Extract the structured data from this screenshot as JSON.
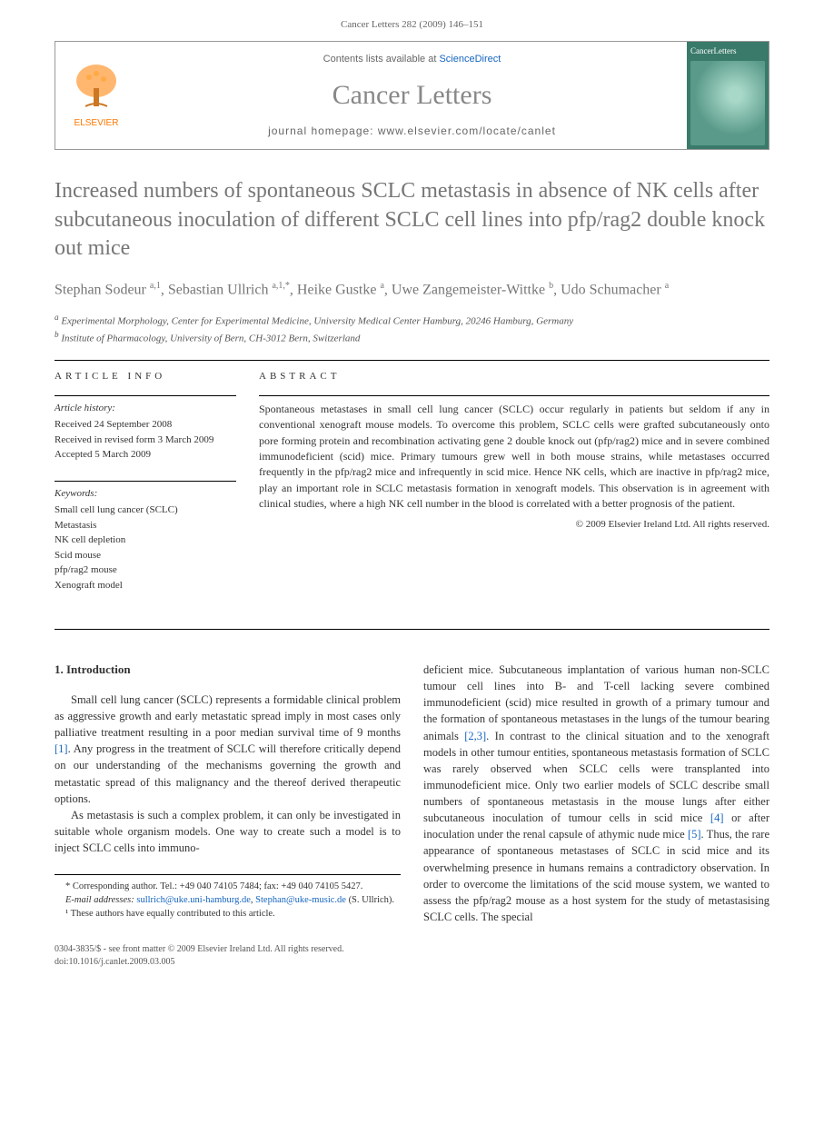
{
  "header": {
    "citation": "Cancer Letters 282 (2009) 146–151"
  },
  "journalBox": {
    "contents_prefix": "Contents lists available at ",
    "contents_link": "ScienceDirect",
    "journal_name": "Cancer Letters",
    "homepage_label": "journal homepage: www.elsevier.com/locate/canlet",
    "elsevier_label": "ELSEVIER",
    "cover_title": "CancerLetters"
  },
  "title": "Increased numbers of spontaneous SCLC metastasis in absence of NK cells after subcutaneous inoculation of different SCLC cell lines into pfp/rag2 double knock out mice",
  "authors_html": "Stephan Sodeur <sup>a,1</sup>, Sebastian Ullrich <sup>a,1,*</sup>, Heike Gustke <sup>a</sup>, Uwe Zangemeister-Wittke <sup>b</sup>, Udo Schumacher <sup>a</sup>",
  "affiliations": {
    "a": "Experimental Morphology, Center for Experimental Medicine, University Medical Center Hamburg, 20246 Hamburg, Germany",
    "b": "Institute of Pharmacology, University of Bern, CH-3012 Bern, Switzerland"
  },
  "articleInfo": {
    "section_label": "ARTICLE INFO",
    "history_heading": "Article history:",
    "received": "Received 24 September 2008",
    "revised": "Received in revised form 3 March 2009",
    "accepted": "Accepted 5 March 2009",
    "keywords_heading": "Keywords:",
    "keywords": [
      "Small cell lung cancer (SCLC)",
      "Metastasis",
      "NK cell depletion",
      "Scid mouse",
      "pfp/rag2 mouse",
      "Xenograft model"
    ]
  },
  "abstract": {
    "section_label": "ABSTRACT",
    "text": "Spontaneous metastases in small cell lung cancer (SCLC) occur regularly in patients but seldom if any in conventional xenograft mouse models. To overcome this problem, SCLC cells were grafted subcutaneously onto pore forming protein and recombination activating gene 2 double knock out (pfp/rag2) mice and in severe combined immunodeficient (scid) mice. Primary tumours grew well in both mouse strains, while metastases occurred frequently in the pfp/rag2 mice and infrequently in scid mice. Hence NK cells, which are inactive in pfp/rag2 mice, play an important role in SCLC metastasis formation in xenograft models. This observation is in agreement with clinical studies, where a high NK cell number in the blood is correlated with a better prognosis of the patient.",
    "copyright": "© 2009 Elsevier Ireland Ltd. All rights reserved."
  },
  "body": {
    "heading": "1. Introduction",
    "col1_p1": "Small cell lung cancer (SCLC) represents a formidable clinical problem as aggressive growth and early metastatic spread imply in most cases only palliative treatment resulting in a poor median survival time of 9 months [1]. Any progress in the treatment of SCLC will therefore critically depend on our understanding of the mechanisms governing the growth and metastatic spread of this malignancy and the thereof derived therapeutic options.",
    "col1_p2": "As metastasis is such a complex problem, it can only be investigated in suitable whole organism models. One way to create such a model is to inject SCLC cells into immuno-",
    "col2_p1": "deficient mice. Subcutaneous implantation of various human non-SCLC tumour cell lines into B- and T-cell lacking severe combined immunodeficient (scid) mice resulted in growth of a primary tumour and the formation of spontaneous metastases in the lungs of the tumour bearing animals [2,3]. In contrast to the clinical situation and to the xenograft models in other tumour entities, spontaneous metastasis formation of SCLC was rarely observed when SCLC cells were transplanted into immunodeficient mice. Only two earlier models of SCLC describe small numbers of spontaneous metastasis in the mouse lungs after either subcutaneous inoculation of tumour cells in scid mice [4] or after inoculation under the renal capsule of athymic nude mice [5]. Thus, the rare appearance of spontaneous metastases of SCLC in scid mice and its overwhelming presence in humans remains a contradictory observation. In order to overcome the limitations of the scid mouse system, we wanted to assess the pfp/rag2 mouse as a host system for the study of metastasising SCLC cells. The special"
  },
  "footnotes": {
    "corresponding": "* Corresponding author. Tel.: +49 040 74105 7484; fax: +49 040 74105 5427.",
    "email_label": "E-mail addresses:",
    "email1": "sullrich@uke.uni-hamburg.de",
    "email2": "Stephan@uke-music.de",
    "email_suffix": " (S. Ullrich).",
    "equal": "¹ These authors have equally contributed to this article."
  },
  "footer": {
    "line1": "0304-3835/$ - see front matter © 2009 Elsevier Ireland Ltd. All rights reserved.",
    "line2": "doi:10.1016/j.canlet.2009.03.005"
  },
  "colors": {
    "title_grey": "#767676",
    "link_blue": "#1565c0",
    "elsevier_orange": "#ff7700",
    "cover_green": "#3a7a6a"
  }
}
